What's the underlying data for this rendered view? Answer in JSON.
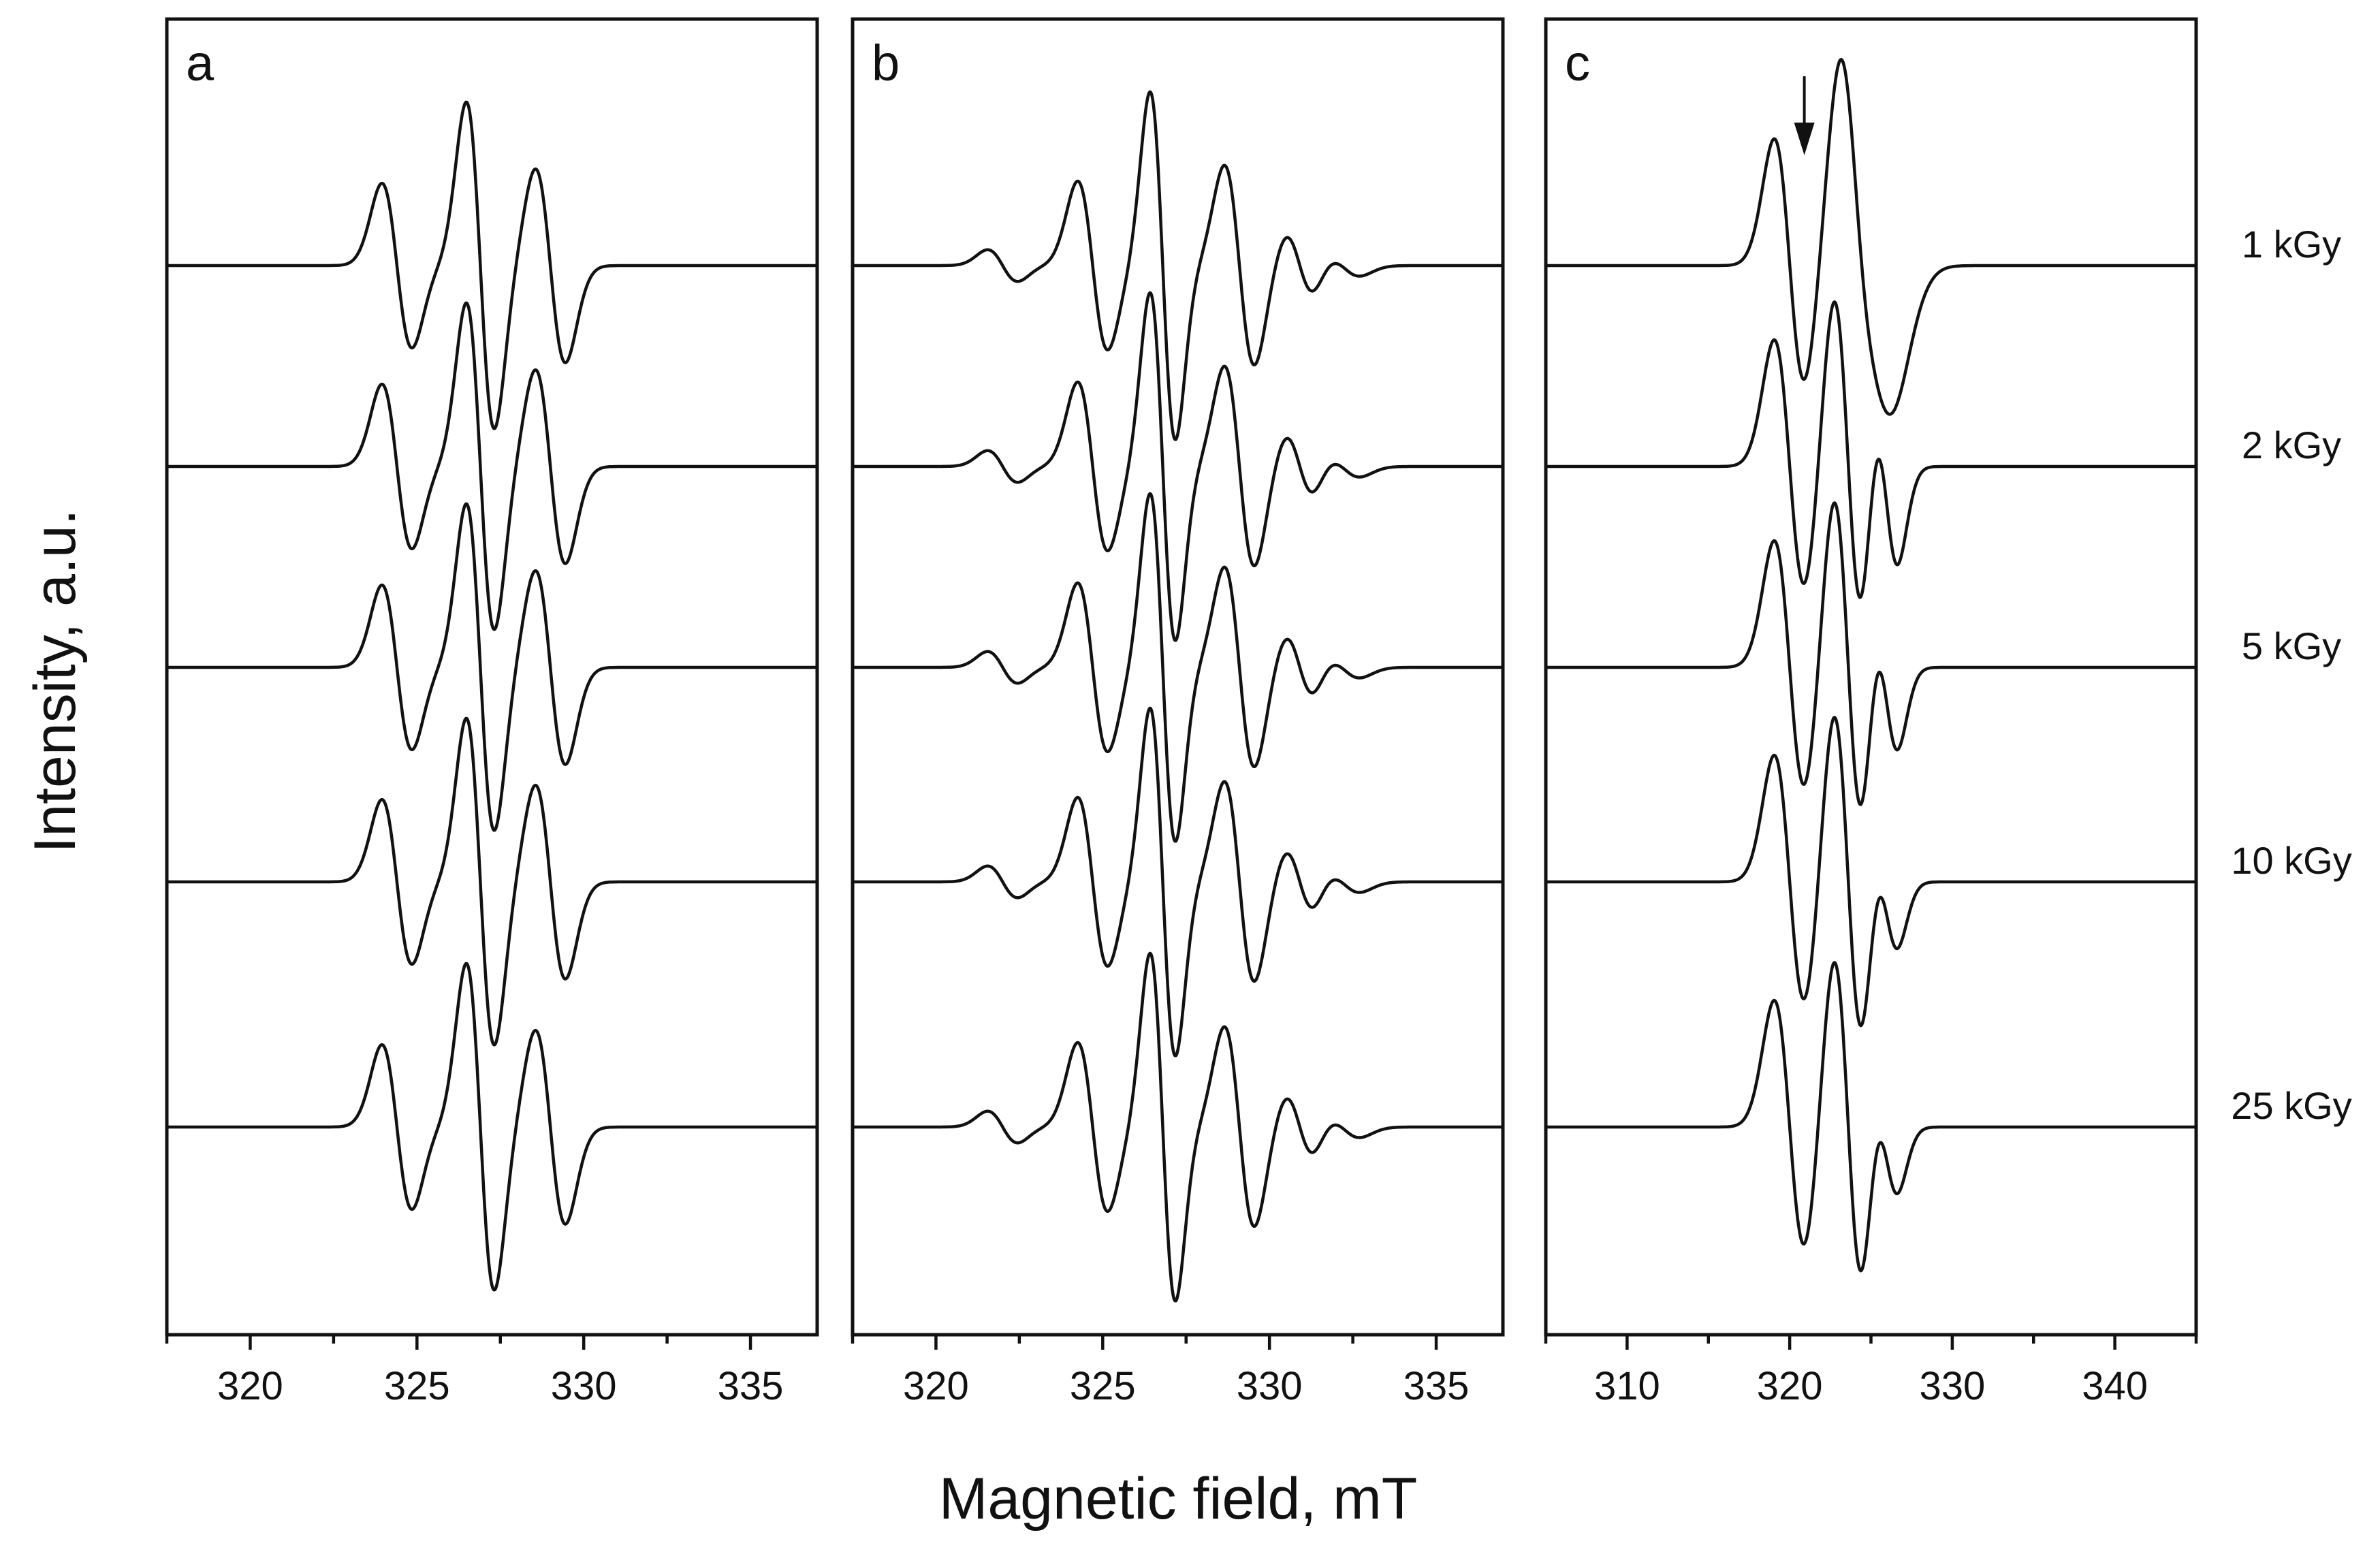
{
  "chart_data": {
    "type": "line",
    "title": "",
    "xlabel": "Magnetic field, mT",
    "ylabel": "Intensity, a.u.",
    "legend_placement": "right",
    "doses": [
      "1 kGy",
      "2 kGy",
      "5 kGy",
      "10 kGy",
      "25 kGy"
    ],
    "panels": [
      {
        "label": "a",
        "xlim": [
          317.5,
          337
        ],
        "xticks_major": [
          320,
          325,
          330,
          335
        ],
        "xticks_minor": [
          317.5,
          322.5,
          327.5,
          332.5
        ],
        "xtick_labels": [
          "320",
          "325",
          "330",
          "335"
        ],
        "spectrum_lines": [
          {
            "center": 324.4,
            "width": 0.45,
            "amplitude": 0.78
          },
          {
            "center": 326.9,
            "width": 0.42,
            "amplitude": 1.55
          },
          {
            "center": 329.0,
            "width": 0.45,
            "amplitude": 0.92
          }
        ],
        "series": [
          {
            "name": "1 kGy"
          },
          {
            "name": "2 kGy"
          },
          {
            "name": "5 kGy"
          },
          {
            "name": "10 kGy"
          },
          {
            "name": "25 kGy"
          }
        ]
      },
      {
        "label": "b",
        "xlim": [
          317.5,
          337
        ],
        "xticks_major": [
          320,
          325,
          330,
          335
        ],
        "xticks_minor": [
          317.5,
          322.5,
          327.5,
          332.5
        ],
        "xtick_labels": [
          "320",
          "325",
          "330",
          "335"
        ],
        "spectrum_lines": [
          {
            "center": 322.0,
            "width": 0.45,
            "amplitude": 0.15
          },
          {
            "center": 324.7,
            "width": 0.45,
            "amplitude": 0.8
          },
          {
            "center": 326.8,
            "width": 0.38,
            "amplitude": 1.65
          },
          {
            "center": 329.1,
            "width": 0.45,
            "amplitude": 0.95
          },
          {
            "center": 330.9,
            "width": 0.42,
            "amplitude": 0.3
          },
          {
            "center": 332.2,
            "width": 0.5,
            "amplitude": 0.1
          }
        ],
        "series": [
          {
            "name": "1 kGy"
          },
          {
            "name": "2 kGy"
          },
          {
            "name": "5 kGy"
          },
          {
            "name": "10 kGy"
          },
          {
            "name": "25 kGy"
          }
        ]
      },
      {
        "label": "c",
        "xlim": [
          305,
          345
        ],
        "xticks_major": [
          310,
          320,
          330,
          340
        ],
        "xticks_minor": [
          305,
          315,
          325,
          335,
          345
        ],
        "xtick_labels": [
          "310",
          "320",
          "330",
          "340"
        ],
        "annotation": "arrow at ~321 mT (1 kGy spectrum)",
        "series": [
          {
            "name": "1 kGy",
            "spectrum_lines": [
              {
                "center": 320.0,
                "width": 0.95,
                "amplitude": 1.2
              },
              {
                "center": 323.8,
                "width": 0.85,
                "amplitude": 0.75
              },
              {
                "center": 324.9,
                "width": 1.4,
                "amplitude": 1.35
              }
            ]
          },
          {
            "name": "2 kGy",
            "spectrum_lines": [
              {
                "center": 320.0,
                "width": 0.95,
                "amplitude": 1.2
              },
              {
                "center": 323.6,
                "width": 0.9,
                "amplitude": 1.65
              },
              {
                "center": 325.9,
                "width": 0.75,
                "amplitude": 0.9
              }
            ]
          },
          {
            "name": "5 kGy",
            "spectrum_lines": [
              {
                "center": 320.0,
                "width": 0.95,
                "amplitude": 1.2
              },
              {
                "center": 323.6,
                "width": 0.9,
                "amplitude": 1.65
              },
              {
                "center": 325.9,
                "width": 0.75,
                "amplitude": 0.75
              }
            ]
          },
          {
            "name": "10 kGy",
            "spectrum_lines": [
              {
                "center": 320.0,
                "width": 0.95,
                "amplitude": 1.2
              },
              {
                "center": 323.6,
                "width": 0.9,
                "amplitude": 1.65
              },
              {
                "center": 325.9,
                "width": 0.75,
                "amplitude": 0.6
              }
            ]
          },
          {
            "name": "25 kGy",
            "spectrum_lines": [
              {
                "center": 320.0,
                "width": 0.95,
                "amplitude": 1.2
              },
              {
                "center": 323.6,
                "width": 0.9,
                "amplitude": 1.65
              },
              {
                "center": 325.9,
                "width": 0.75,
                "amplitude": 0.6
              }
            ]
          }
        ]
      }
    ]
  }
}
